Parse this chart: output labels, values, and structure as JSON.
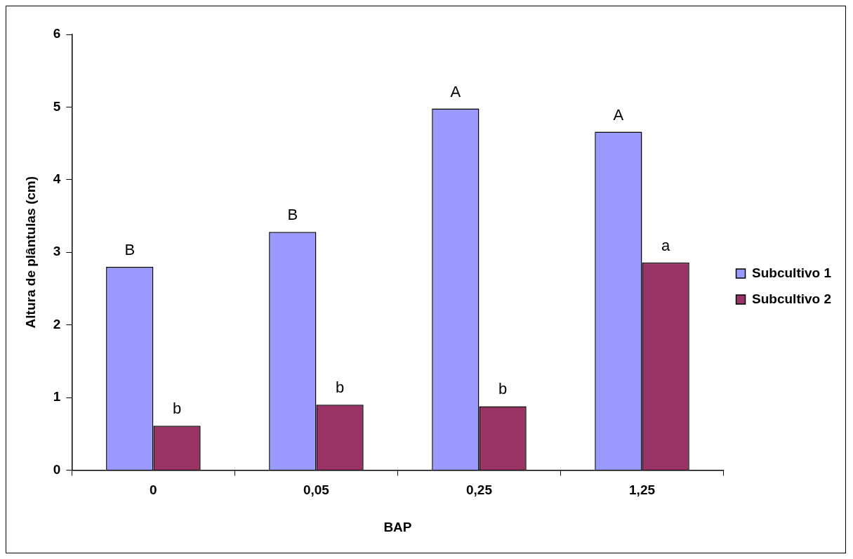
{
  "chart_data": {
    "type": "bar",
    "xlabel": "BAP",
    "ylabel": "Altura de plântulas (cm)",
    "categories": [
      "0",
      "0,05",
      "0,25",
      "1,25"
    ],
    "series": [
      {
        "name": "Subcultivo 1",
        "color": "#9999ff",
        "values": [
          2.8,
          3.28,
          4.98,
          4.66
        ]
      },
      {
        "name": "Subcultivo 2",
        "color": "#993366",
        "values": [
          0.61,
          0.9,
          0.88,
          2.86
        ]
      }
    ],
    "ylim": [
      0,
      6
    ],
    "yticks": [
      0,
      1,
      2,
      3,
      4,
      5,
      6
    ],
    "grid": false,
    "legend": "right",
    "annotations": [
      {
        "text": "B",
        "x": "0",
        "y": 2.8
      },
      {
        "text": "b",
        "x": "0",
        "y": 0.61
      },
      {
        "text": "B",
        "x": "0,05",
        "y": 3.28
      },
      {
        "text": "b",
        "x": "0,05",
        "y": 0.9
      },
      {
        "text": "A",
        "x": "0,25",
        "y": 4.98
      },
      {
        "text": "b",
        "x": "0,25",
        "y": 0.88
      },
      {
        "text": "A",
        "x": "1,25",
        "y": 4.66
      },
      {
        "text": "a",
        "x": "1,25",
        "y": 2.86
      }
    ]
  }
}
